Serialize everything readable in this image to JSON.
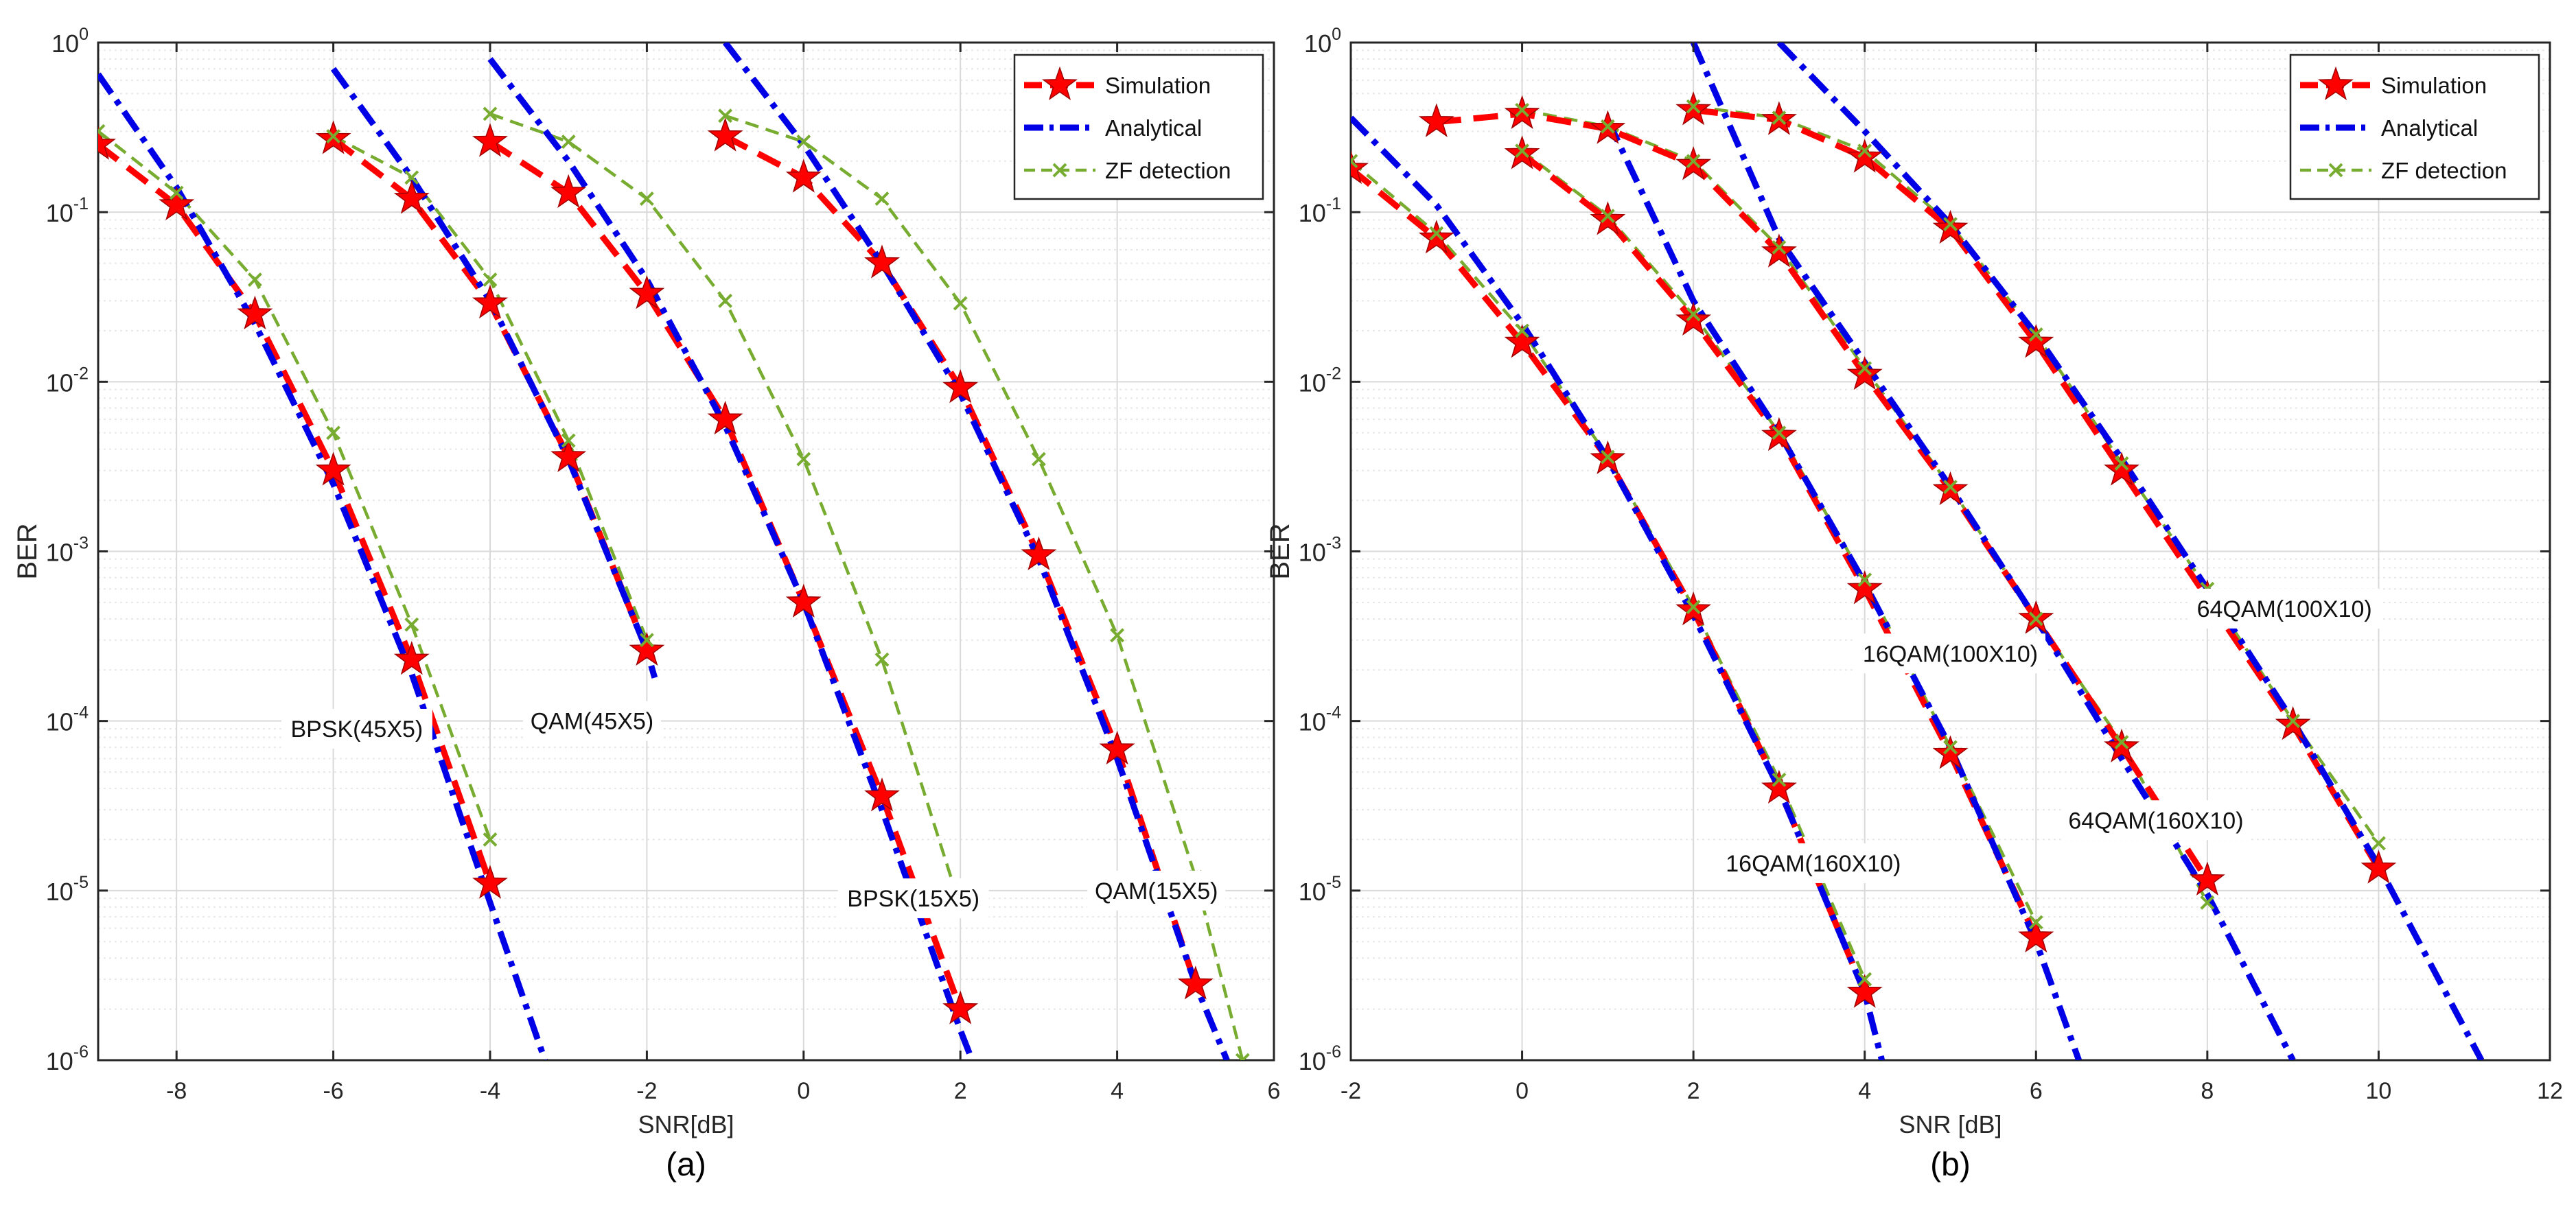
{
  "colors": {
    "simulation": "#ff0000",
    "analytical": "#0000e6",
    "zf": "#77ac30",
    "grid": "#d9d9d9",
    "minor_grid": "#e8e8e8",
    "axis": "#262626"
  },
  "legend_entries": [
    "Simulation",
    "Analytical",
    "ZF detection"
  ],
  "chart_data": [
    {
      "type": "line",
      "panel_label": "(a)",
      "xlabel": "SNR[dB]",
      "ylabel": "BER",
      "yscale": "log",
      "xlim": [
        -9,
        6
      ],
      "ylim": [
        1e-06,
        1
      ],
      "xticks": [
        -8,
        -6,
        -4,
        -2,
        0,
        2,
        4,
        6
      ],
      "xtick_labels": [
        "-8",
        "-6",
        "-4",
        "-2",
        "0",
        "2",
        "4",
        "6"
      ],
      "grid": true,
      "legend": [
        "Simulation",
        "Analytical",
        "ZF detection"
      ],
      "legend_position": "top-right",
      "annotations": [
        {
          "text": "BPSK(45X5)",
          "x": -5.7,
          "y": 9e-05
        },
        {
          "text": "QAM(45X5)",
          "x": -2.7,
          "y": 0.0001
        },
        {
          "text": "BPSK(15X5)",
          "x": 1.4,
          "y": 9e-06
        },
        {
          "text": "QAM(15X5)",
          "x": 4.5,
          "y": 1e-05
        }
      ],
      "series": [
        {
          "name": "Simulation BPSK(45X5)",
          "style": "simulation",
          "x": [
            -9,
            -8,
            -7,
            -6,
            -5,
            -4
          ],
          "y": [
            0.25,
            0.11,
            0.025,
            0.003,
            0.00023,
            1.1e-05
          ]
        },
        {
          "name": "Analytical BPSK(45X5)",
          "style": "analytical",
          "x": [
            -9,
            -8,
            -7,
            -6,
            -5,
            -4,
            -3.3
          ],
          "y": [
            0.65,
            0.14,
            0.022,
            0.0025,
            0.00019,
            8.5e-06,
            1e-06
          ]
        },
        {
          "name": "ZF detection BPSK(45X5)",
          "style": "zf",
          "x": [
            -9,
            -8,
            -7,
            -6,
            -5,
            -4
          ],
          "y": [
            0.3,
            0.13,
            0.04,
            0.005,
            0.00037,
            2e-05
          ]
        },
        {
          "name": "Simulation QAM(45X5)",
          "style": "simulation",
          "x": [
            -6,
            -5,
            -4,
            -3,
            -2
          ],
          "y": [
            0.27,
            0.12,
            0.029,
            0.0036,
            0.00026
          ]
        },
        {
          "name": "Analytical QAM(45X5)",
          "style": "analytical",
          "x": [
            -6,
            -5,
            -4,
            -3,
            -2,
            -1.9
          ],
          "y": [
            0.7,
            0.16,
            0.03,
            0.0035,
            0.00026,
            0.00018
          ]
        },
        {
          "name": "ZF detection QAM(45X5)",
          "style": "zf",
          "x": [
            -6,
            -5,
            -4,
            -3,
            -2
          ],
          "y": [
            0.28,
            0.16,
            0.04,
            0.0045,
            0.0003
          ]
        },
        {
          "name": "Simulation BPSK(15X5)",
          "style": "simulation",
          "x": [
            -4,
            -3,
            -2,
            -1,
            0,
            1,
            2
          ],
          "y": [
            0.26,
            0.13,
            0.033,
            0.006,
            0.0005,
            3.6e-05,
            2e-06
          ]
        },
        {
          "name": "Analytical BPSK(15X5)",
          "style": "analytical",
          "x": [
            -4,
            -3,
            -2,
            -1,
            0,
            1,
            2,
            2.15
          ],
          "y": [
            0.8,
            0.2,
            0.04,
            0.0055,
            0.0005,
            3e-05,
            1.5e-06,
            1e-06
          ]
        },
        {
          "name": "ZF detection BPSK(15X5)",
          "style": "zf",
          "x": [
            -4,
            -3,
            -2,
            -1,
            0,
            1,
            2
          ],
          "y": [
            0.38,
            0.26,
            0.12,
            0.03,
            0.0035,
            0.00023,
            8e-06
          ]
        },
        {
          "name": "Simulation QAM(15X5)",
          "style": "simulation",
          "x": [
            -1,
            0,
            1,
            2,
            3,
            4,
            5
          ],
          "y": [
            0.28,
            0.16,
            0.05,
            0.0092,
            0.00095,
            6.8e-05,
            2.8e-06
          ]
        },
        {
          "name": "Analytical QAM(15X5)",
          "style": "analytical",
          "x": [
            -1,
            0,
            1,
            2,
            3,
            4,
            5,
            5.4
          ],
          "y": [
            1.0,
            0.25,
            0.05,
            0.0085,
            0.0009,
            6e-05,
            2.8e-06,
            1e-06
          ]
        },
        {
          "name": "ZF detection QAM(15X5)",
          "style": "zf",
          "x": [
            -1,
            0,
            1,
            2,
            3,
            4,
            5,
            5.6
          ],
          "y": [
            0.37,
            0.26,
            0.12,
            0.029,
            0.0035,
            0.00032,
            1.2e-05,
            1e-06
          ]
        }
      ]
    },
    {
      "type": "line",
      "panel_label": "(b)",
      "xlabel": "SNR [dB]",
      "ylabel": "BER",
      "yscale": "log",
      "xlim": [
        -2,
        12
      ],
      "ylim": [
        1e-06,
        1
      ],
      "xticks": [
        -2,
        0,
        2,
        4,
        6,
        8,
        10,
        12
      ],
      "xtick_labels": [
        "-2",
        "0",
        "2",
        "4",
        "6",
        "8",
        "10",
        "12"
      ],
      "grid": true,
      "legend": [
        "Simulation",
        "Analytical",
        "ZF detection"
      ],
      "legend_position": "top-right",
      "annotations": [
        {
          "text": "16QAM(100X10)",
          "x": 5.0,
          "y": 0.00025
        },
        {
          "text": "64QAM(100X10)",
          "x": 8.9,
          "y": 0.00046
        },
        {
          "text": "64QAM(160X10)",
          "x": 7.4,
          "y": 2.6e-05
        },
        {
          "text": "16QAM(160X10)",
          "x": 3.4,
          "y": 1.45e-05
        }
      ],
      "series": [
        {
          "name": "Simulation 16QAM(160X10)",
          "style": "simulation",
          "x": [
            -2,
            -1,
            0,
            1,
            2,
            3,
            4
          ],
          "y": [
            0.18,
            0.07,
            0.017,
            0.0035,
            0.00045,
            4e-05,
            2.5e-06
          ]
        },
        {
          "name": "Analytical 16QAM(160X10)",
          "style": "analytical",
          "x": [
            -2,
            -1,
            0,
            1,
            2,
            3,
            4,
            4.2
          ],
          "y": [
            0.36,
            0.11,
            0.022,
            0.0035,
            0.00042,
            4e-05,
            2.5e-06,
            1e-06
          ]
        },
        {
          "name": "ZF detection 16QAM(160X10)",
          "style": "zf",
          "x": [
            -2,
            -1,
            0,
            1,
            2,
            3,
            4
          ],
          "y": [
            0.2,
            0.075,
            0.02,
            0.0036,
            0.00047,
            4.5e-05,
            3e-06
          ]
        },
        {
          "name": "Simulation 16QAM(100X10)",
          "style": "simulation",
          "x": [
            0,
            1,
            2,
            3,
            4,
            5,
            6
          ],
          "y": [
            0.22,
            0.09,
            0.023,
            0.0048,
            0.0006,
            6.4e-05,
            5.3e-06
          ]
        },
        {
          "name": "Analytical 16QAM(100X10)",
          "style": "analytical",
          "x": [
            1,
            2,
            3,
            4,
            5,
            6,
            6.5
          ],
          "y": [
            0.35,
            0.03,
            0.005,
            0.00065,
            7e-05,
            5e-06,
            1e-06
          ]
        },
        {
          "name": "ZF detection 16QAM(100X10)",
          "style": "zf",
          "x": [
            0,
            1,
            2,
            3,
            4,
            5,
            6
          ],
          "y": [
            0.23,
            0.095,
            0.025,
            0.005,
            0.00068,
            7e-05,
            6.5e-06
          ]
        },
        {
          "name": "Simulation 64QAM(160X10)",
          "style": "simulation",
          "x": [
            -1,
            0,
            1,
            2,
            3,
            4,
            5,
            6,
            7,
            8
          ],
          "y": [
            0.34,
            0.38,
            0.31,
            0.19,
            0.058,
            0.011,
            0.0023,
            0.0004,
            7e-05,
            1.15e-05
          ]
        },
        {
          "name": "Analytical 64QAM(160X10)",
          "style": "analytical",
          "x": [
            2,
            3,
            4,
            5,
            6,
            7,
            8,
            9
          ],
          "y": [
            1.0,
            0.07,
            0.013,
            0.0024,
            0.0004,
            6e-05,
            9.5e-06,
            1e-06
          ]
        },
        {
          "name": "ZF detection 64QAM(160X10)",
          "style": "zf",
          "x": [
            0,
            1,
            2,
            3,
            4,
            5,
            6,
            7,
            8
          ],
          "y": [
            0.4,
            0.32,
            0.2,
            0.062,
            0.012,
            0.0024,
            0.0004,
            7.5e-05,
            8.5e-06
          ]
        },
        {
          "name": "Simulation 64QAM(100X10)",
          "style": "simulation",
          "x": [
            2,
            3,
            4,
            5,
            6,
            7,
            8,
            9,
            10
          ],
          "y": [
            0.4,
            0.35,
            0.21,
            0.08,
            0.017,
            0.003,
            0.00053,
            9.5e-05,
            1.35e-05
          ]
        },
        {
          "name": "Analytical 64QAM(100X10)",
          "style": "analytical",
          "x": [
            3,
            4,
            5,
            6,
            7,
            8,
            9,
            10,
            11.2
          ],
          "y": [
            1.0,
            0.3,
            0.085,
            0.019,
            0.0035,
            0.0006,
            0.0001,
            1.4e-05,
            1e-06
          ]
        },
        {
          "name": "ZF detection 64QAM(100X10)",
          "style": "zf",
          "x": [
            2,
            3,
            4,
            5,
            6,
            7,
            8,
            9,
            10
          ],
          "y": [
            0.42,
            0.36,
            0.23,
            0.085,
            0.019,
            0.0033,
            0.0006,
            0.0001,
            1.9e-05
          ]
        }
      ]
    }
  ]
}
